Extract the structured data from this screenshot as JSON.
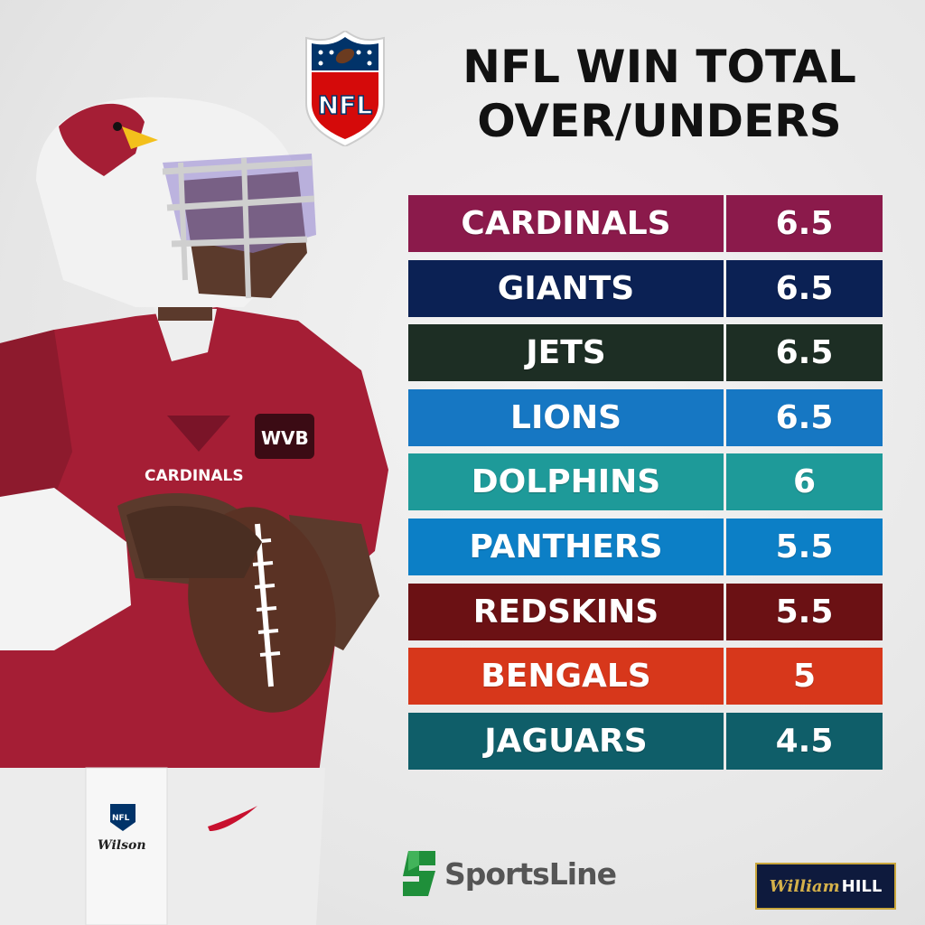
{
  "header": {
    "logo_text": "NFL",
    "title_line1": "NFL WIN TOTAL",
    "title_line2": "OVER/UNDERS"
  },
  "rows": [
    {
      "team": "CARDINALS",
      "value": "6.5",
      "color": "#8b1a4b"
    },
    {
      "team": "GIANTS",
      "value": "6.5",
      "color": "#0b2154"
    },
    {
      "team": "JETS",
      "value": "6.5",
      "color": "#1d2e24"
    },
    {
      "team": "LIONS",
      "value": "6.5",
      "color": "#1677c3"
    },
    {
      "team": "DOLPHINS",
      "value": "6",
      "color": "#1e9a99"
    },
    {
      "team": "PANTHERS",
      "value": "5.5",
      "color": "#0c7fc6"
    },
    {
      "team": "REDSKINS",
      "value": "5.5",
      "color": "#6b1114"
    },
    {
      "team": "BENGALS",
      "value": "5",
      "color": "#d7371b"
    },
    {
      "team": "JAGUARS",
      "value": "4.5",
      "color": "#0f5e69"
    }
  ],
  "jersey": {
    "team_text": "CARDINALS",
    "patch_text": "WVB",
    "glove_brand": "Wilson",
    "belt_logo": "NFL"
  },
  "footer": {
    "sportsline": "SportsLine",
    "william_hill_script": "William",
    "william_hill_block": "HILL"
  },
  "colors": {
    "jersey_red": "#a51e35",
    "helmet_white": "#f2f2f2",
    "nfl_blue": "#013369",
    "nfl_red": "#d50a0a",
    "sportsline_green": "#1f8f3a"
  }
}
